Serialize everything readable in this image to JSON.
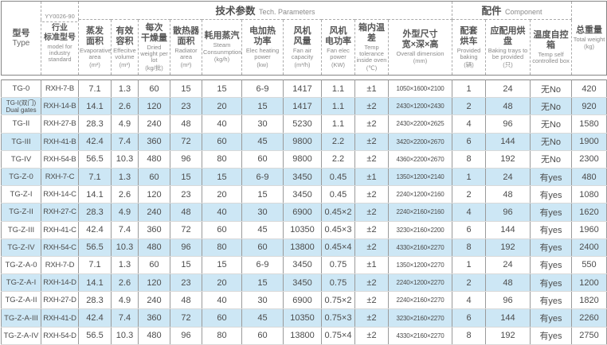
{
  "table": {
    "stripe_color": "#cde7f5",
    "border_color": "#858585",
    "text_color": "#4c4c4c",
    "groups": {
      "tech": {
        "zh": "技术参数",
        "en": "Tech. Parameters"
      },
      "component": {
        "zh": "配件",
        "en": "Component"
      }
    },
    "columns": [
      {
        "zh": "型号",
        "en": "Type"
      },
      {
        "top": "YY0026-90",
        "zh": [
          "行业",
          "标准型号"
        ],
        "en": "model for industry standard"
      },
      {
        "zh": [
          "蒸发",
          "面积"
        ],
        "en": "Evaporative area",
        "unit": "(m²)"
      },
      {
        "zh": [
          "有效",
          "容积"
        ],
        "en": "Effecitve volume",
        "unit": "(m³)"
      },
      {
        "zh": [
          "每次",
          "干燥量"
        ],
        "en": "Dried weight per lot",
        "unit": "(kg/批)"
      },
      {
        "zh": [
          "散热器",
          "面积"
        ],
        "en": "Radiator area",
        "unit": "(m²)"
      },
      {
        "zh": [
          "耗用蒸汽"
        ],
        "en": "Steam Consunmption",
        "unit": "(kg/h)"
      },
      {
        "zh": [
          "电加热",
          "功率"
        ],
        "en": "Elec heating power",
        "unit": "(kw)"
      },
      {
        "zh": [
          "风机",
          "风量"
        ],
        "en": "Fan air capacity",
        "unit": "(m³/h)"
      },
      {
        "zh": [
          "风机",
          "电功率"
        ],
        "en": "Fan elec power",
        "unit": "(KW)"
      },
      {
        "zh": [
          "箱内温差"
        ],
        "en": "Temp tolerance inside oven",
        "unit": "(℃)"
      },
      {
        "zh": [
          "外型尺寸",
          "宽×深×高"
        ],
        "en": "Overall dimension",
        "unit": "(mm)"
      },
      {
        "zh": [
          "配套",
          "烘车"
        ],
        "en": "Provided baking",
        "unit": "(辆)"
      },
      {
        "zh": [
          "应配用烘盘"
        ],
        "en": "Baking trays to be provided",
        "unit": "(只)"
      },
      {
        "zh": [
          "温度自控箱"
        ],
        "en": "Temp self controlled box",
        "unit": ""
      },
      {
        "zh": "总重量",
        "en": "Total weight",
        "unit": "(kg)"
      }
    ],
    "rows": [
      [
        "TG-0",
        "RXH-7-B",
        "7.1",
        "1.3",
        "60",
        "15",
        "15",
        "6-9",
        "1417",
        "1.1",
        "±1",
        "1050×1600×2100",
        "1",
        "24",
        "无No",
        "420"
      ],
      [
        [
          "TG-I(双门)",
          "Dual gates"
        ],
        "RXH-14-B",
        "14.1",
        "2.6",
        "120",
        "23",
        "20",
        "15",
        "1417",
        "1.1",
        "±2",
        "2430×1200×2430",
        "2",
        "48",
        "无No",
        "920"
      ],
      [
        "TG-II",
        "RXH-27-B",
        "28.3",
        "4.9",
        "240",
        "48",
        "40",
        "30",
        "5230",
        "1.1",
        "±2",
        "2430×2200×2625",
        "4",
        "96",
        "无No",
        "1580"
      ],
      [
        "TG-III",
        "RXH-41-B",
        "42.4",
        "7.4",
        "360",
        "72",
        "60",
        "45",
        "9800",
        "2.2",
        "±2",
        "3420×2200×2670",
        "6",
        "144",
        "无No",
        "1900"
      ],
      [
        "TG-IV",
        "RXH-54-B",
        "56.5",
        "10.3",
        "480",
        "96",
        "80",
        "60",
        "9800",
        "2.2",
        "±2",
        "4360×2200×2670",
        "8",
        "192",
        "无No",
        "2300"
      ],
      [
        "TG-Z-0",
        "RXH-7-C",
        "7.1",
        "1.3",
        "60",
        "15",
        "15",
        "6-9",
        "3450",
        "0.45",
        "±1",
        "1350×1200×2140",
        "1",
        "24",
        "有yes",
        "480"
      ],
      [
        "TG-Z-I",
        "RXH-14-C",
        "14.1",
        "2.6",
        "120",
        "23",
        "20",
        "15",
        "3450",
        "0.45",
        "±2",
        "2240×1200×2160",
        "2",
        "48",
        "有yes",
        "1080"
      ],
      [
        "TG-Z-II",
        "RXH-27-C",
        "28.3",
        "4.9",
        "240",
        "48",
        "40",
        "30",
        "6900",
        "0.45×2",
        "±2",
        "2240×2160×2160",
        "4",
        "96",
        "有yes",
        "1620"
      ],
      [
        "TG-Z-III",
        "RXH-41-C",
        "42.4",
        "7.4",
        "360",
        "72",
        "60",
        "45",
        "10350",
        "0.45×3",
        "±2",
        "3230×2160×2200",
        "6",
        "144",
        "有yes",
        "1960"
      ],
      [
        "TG-Z-IV",
        "RXH-54-C",
        "56.5",
        "10.3",
        "480",
        "96",
        "80",
        "60",
        "13800",
        "0.45×4",
        "±2",
        "4330×2160×2270",
        "8",
        "192",
        "有yes",
        "2400"
      ],
      [
        "TG-Z-A-0",
        "RXH-7-D",
        "7.1",
        "1.3",
        "60",
        "15",
        "15",
        "6-9",
        "3450",
        "0.75",
        "±1",
        "1350×1200×2270",
        "1",
        "24",
        "有yes",
        "550"
      ],
      [
        "TG-Z-A-I",
        "RXH-14-D",
        "14.1",
        "2.6",
        "120",
        "23",
        "20",
        "15",
        "3450",
        "0.75",
        "±2",
        "2240×1200×2270",
        "2",
        "48",
        "有yes",
        "1200"
      ],
      [
        "TG-Z-A-II",
        "RXH-27-D",
        "28.3",
        "4.9",
        "240",
        "48",
        "40",
        "30",
        "6900",
        "0.75×2",
        "±2",
        "2240×2160×2270",
        "4",
        "96",
        "有yes",
        "1820"
      ],
      [
        "TG-Z-A-III",
        "RXH-41-D",
        "42.4",
        "7.4",
        "360",
        "72",
        "60",
        "45",
        "10350",
        "0.75×3",
        "±2",
        "3230×2160×2270",
        "6",
        "144",
        "有yes",
        "2260"
      ],
      [
        "TG-Z-A-IV",
        "RXH-54-D",
        "56.5",
        "10.3",
        "480",
        "96",
        "80",
        "60",
        "13800",
        "0.75×4",
        "±2",
        "4330×2160×2270",
        "8",
        "192",
        "有yes",
        "2750"
      ]
    ]
  }
}
